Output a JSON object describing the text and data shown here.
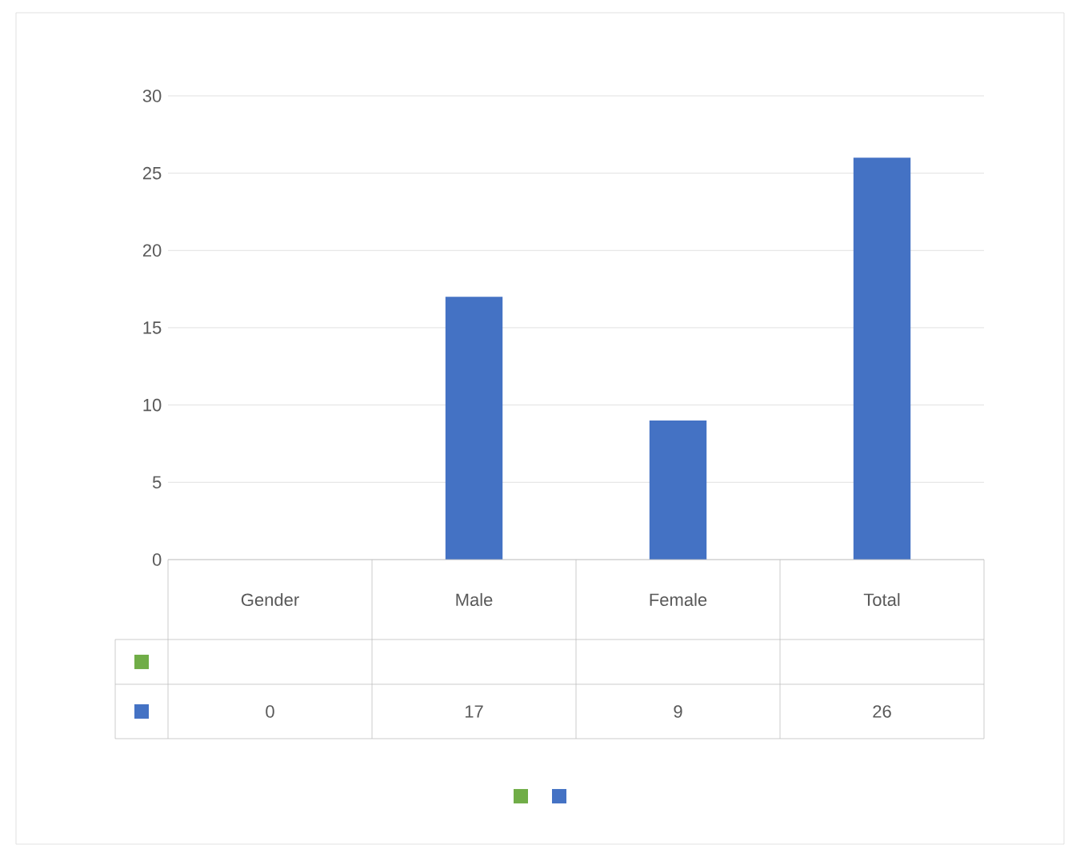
{
  "chart_data": {
    "type": "bar",
    "categories": [
      "Gender",
      "Male",
      "Female",
      "Total"
    ],
    "series": [
      {
        "color": "#70ad47",
        "values": [
          null,
          null,
          null,
          null
        ]
      },
      {
        "color": "#4472c4",
        "values": [
          0,
          17,
          9,
          26
        ]
      }
    ],
    "ylim": [
      0,
      30
    ],
    "yticks": [
      0,
      5,
      10,
      15,
      20,
      25,
      30
    ],
    "grid": "y",
    "data_labels": true
  }
}
